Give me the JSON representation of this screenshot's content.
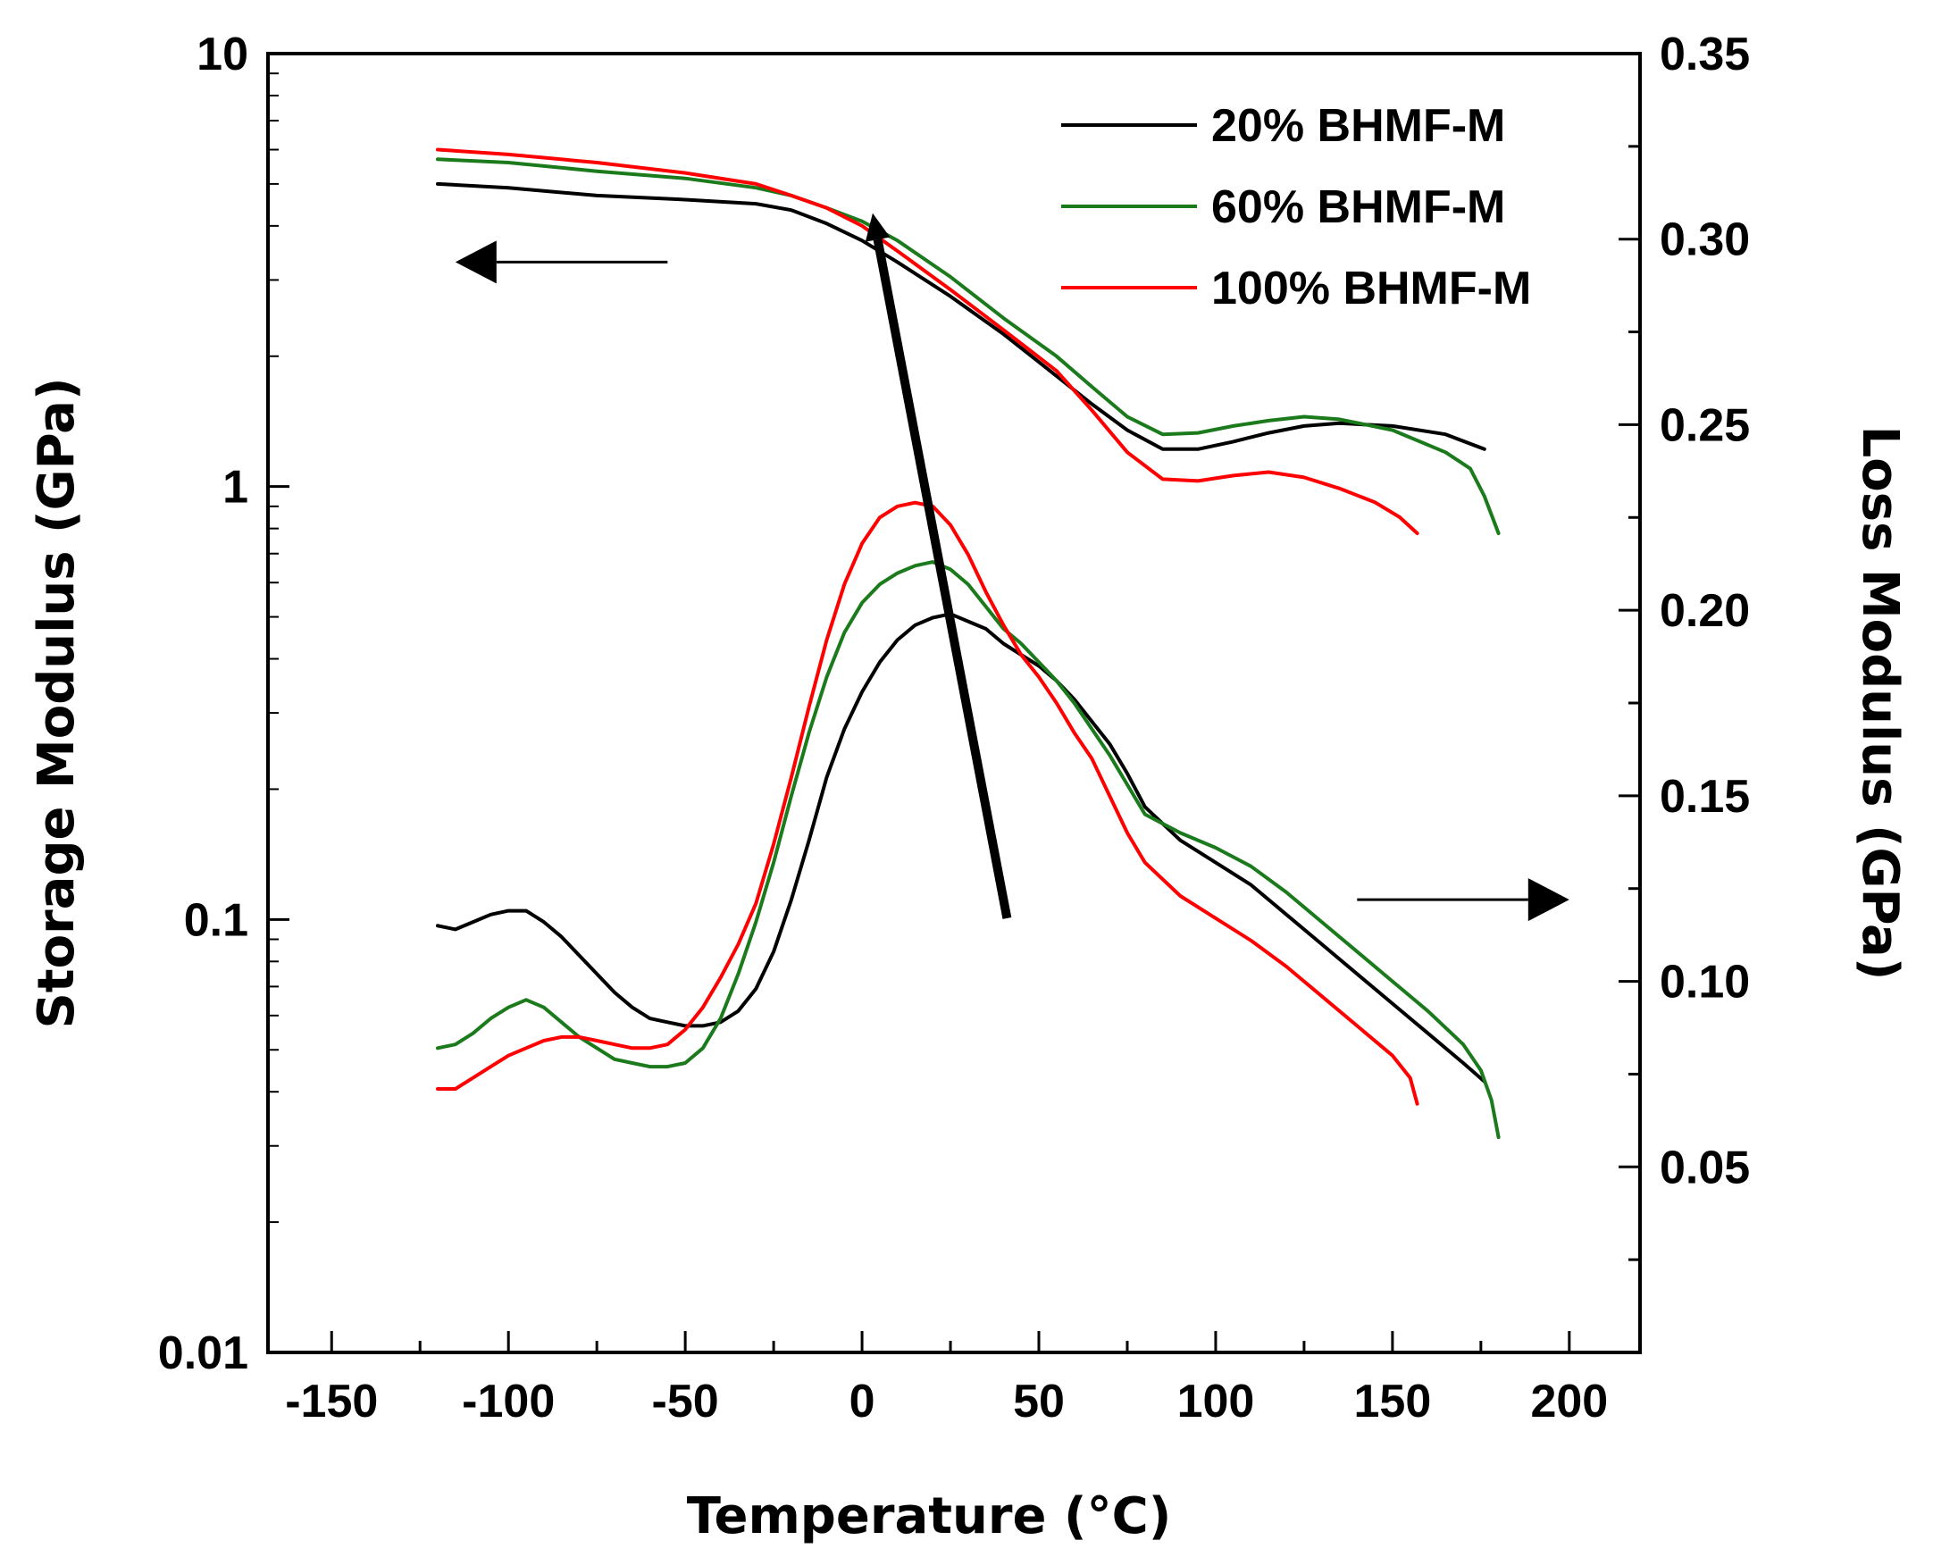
{
  "chart_data": {
    "type": "line",
    "title": "",
    "xlabel": "Temperature (°C)",
    "ylabel_left": "Storage Modulus (GPa)",
    "ylabel_right": "Loss  Modulus (GPa)",
    "xlim": [
      -168,
      220
    ],
    "xticks": [
      -150,
      -100,
      -50,
      0,
      50,
      100,
      150,
      200
    ],
    "xtick_labels": [
      "-150",
      "-100",
      "-50",
      "0",
      "50",
      "100",
      "150",
      "200"
    ],
    "ylim_left": [
      0.01,
      10
    ],
    "yscale_left": "log",
    "yticks_left": [
      10,
      1,
      0.1,
      0.01
    ],
    "ytick_labels_left": [
      "10",
      "1",
      "0.1",
      "0.01"
    ],
    "ylim_right": [
      0.0,
      0.35
    ],
    "yticks_right": [
      0.35,
      0.3,
      0.25,
      0.2,
      0.15,
      0.1,
      0.05
    ],
    "ytick_labels_right": [
      "0.35",
      "0.30",
      "0.25",
      "0.20",
      "0.15",
      "0.10",
      "0.05"
    ],
    "legend_position": "top-right",
    "legend": [
      "20% BHMF-M",
      "60% BHMF-M",
      "100% BHMF-M"
    ],
    "series": [
      {
        "name": "20% BHMF-M",
        "color": "#000000",
        "axis": "left",
        "kind": "storage",
        "x": [
          -120,
          -100,
          -75,
          -50,
          -30,
          -20,
          -10,
          0,
          10,
          25,
          40,
          55,
          65,
          75,
          85,
          95,
          105,
          115,
          125,
          135,
          150,
          165,
          176
        ],
        "y": [
          5.0,
          4.9,
          4.7,
          4.6,
          4.5,
          4.35,
          4.05,
          3.7,
          3.3,
          2.75,
          2.25,
          1.8,
          1.55,
          1.35,
          1.22,
          1.22,
          1.27,
          1.33,
          1.38,
          1.4,
          1.38,
          1.32,
          1.22
        ]
      },
      {
        "name": "60% BHMF-M",
        "color": "#1b7a1b",
        "axis": "left",
        "kind": "storage",
        "x": [
          -120,
          -100,
          -75,
          -50,
          -30,
          -20,
          -10,
          0,
          10,
          25,
          40,
          55,
          65,
          75,
          85,
          95,
          105,
          115,
          125,
          135,
          150,
          165,
          172,
          176,
          180
        ],
        "y": [
          5.7,
          5.6,
          5.35,
          5.15,
          4.9,
          4.7,
          4.4,
          4.1,
          3.7,
          3.05,
          2.45,
          2.0,
          1.7,
          1.45,
          1.32,
          1.33,
          1.38,
          1.42,
          1.45,
          1.43,
          1.35,
          1.2,
          1.1,
          0.95,
          0.78
        ]
      },
      {
        "name": "100% BHMF-M",
        "color": "#ff0000",
        "axis": "left",
        "kind": "storage",
        "x": [
          -120,
          -100,
          -75,
          -50,
          -30,
          -20,
          -10,
          0,
          10,
          25,
          40,
          55,
          65,
          75,
          85,
          95,
          105,
          115,
          125,
          135,
          145,
          152,
          157
        ],
        "y": [
          6.0,
          5.85,
          5.6,
          5.3,
          5.0,
          4.7,
          4.4,
          4.0,
          3.5,
          2.85,
          2.3,
          1.85,
          1.5,
          1.2,
          1.04,
          1.03,
          1.06,
          1.08,
          1.05,
          0.99,
          0.92,
          0.85,
          0.78
        ]
      },
      {
        "name": "20% BHMF-M",
        "color": "#000000",
        "axis": "right",
        "kind": "loss",
        "x": [
          -120,
          -115,
          -110,
          -105,
          -100,
          -95,
          -90,
          -85,
          -80,
          -75,
          -70,
          -65,
          -60,
          -55,
          -50,
          -45,
          -40,
          -35,
          -30,
          -25,
          -20,
          -15,
          -10,
          -5,
          0,
          5,
          10,
          15,
          20,
          25,
          30,
          35,
          40,
          45,
          50,
          55,
          60,
          65,
          70,
          75,
          80,
          90,
          100,
          110,
          120,
          130,
          140,
          150,
          160,
          170,
          176
        ],
        "y": [
          0.115,
          0.114,
          0.116,
          0.118,
          0.119,
          0.119,
          0.116,
          0.112,
          0.107,
          0.102,
          0.097,
          0.093,
          0.09,
          0.089,
          0.088,
          0.088,
          0.089,
          0.092,
          0.098,
          0.108,
          0.122,
          0.138,
          0.155,
          0.168,
          0.178,
          0.186,
          0.192,
          0.196,
          0.198,
          0.199,
          0.197,
          0.195,
          0.191,
          0.188,
          0.185,
          0.181,
          0.176,
          0.17,
          0.164,
          0.156,
          0.147,
          0.138,
          0.132,
          0.126,
          0.118,
          0.11,
          0.102,
          0.094,
          0.086,
          0.078,
          0.073
        ]
      },
      {
        "name": "60% BHMF-M",
        "color": "#1b7a1b",
        "axis": "right",
        "kind": "loss",
        "x": [
          -120,
          -115,
          -110,
          -105,
          -100,
          -95,
          -90,
          -85,
          -80,
          -75,
          -70,
          -65,
          -60,
          -55,
          -50,
          -45,
          -40,
          -35,
          -30,
          -25,
          -20,
          -15,
          -10,
          -5,
          0,
          5,
          10,
          15,
          20,
          25,
          30,
          35,
          40,
          45,
          50,
          55,
          60,
          65,
          70,
          75,
          80,
          90,
          100,
          110,
          120,
          130,
          140,
          150,
          160,
          170,
          175,
          178,
          180
        ],
        "y": [
          0.082,
          0.083,
          0.086,
          0.09,
          0.093,
          0.095,
          0.093,
          0.089,
          0.085,
          0.082,
          0.079,
          0.078,
          0.077,
          0.077,
          0.078,
          0.082,
          0.09,
          0.102,
          0.116,
          0.132,
          0.15,
          0.167,
          0.182,
          0.194,
          0.202,
          0.207,
          0.21,
          0.212,
          0.213,
          0.211,
          0.207,
          0.201,
          0.195,
          0.191,
          0.186,
          0.181,
          0.175,
          0.168,
          0.161,
          0.153,
          0.145,
          0.14,
          0.136,
          0.131,
          0.124,
          0.116,
          0.108,
          0.1,
          0.092,
          0.083,
          0.076,
          0.068,
          0.058
        ]
      },
      {
        "name": "100% BHMF-M",
        "color": "#ff0000",
        "axis": "right",
        "kind": "loss",
        "x": [
          -120,
          -115,
          -110,
          -105,
          -100,
          -95,
          -90,
          -85,
          -80,
          -75,
          -70,
          -65,
          -60,
          -55,
          -50,
          -45,
          -40,
          -35,
          -30,
          -25,
          -20,
          -15,
          -10,
          -5,
          0,
          5,
          10,
          15,
          20,
          25,
          30,
          35,
          40,
          45,
          50,
          55,
          60,
          65,
          70,
          75,
          80,
          90,
          100,
          110,
          120,
          130,
          140,
          150,
          155,
          157
        ],
        "y": [
          0.071,
          0.071,
          0.074,
          0.077,
          0.08,
          0.082,
          0.084,
          0.085,
          0.085,
          0.084,
          0.083,
          0.082,
          0.082,
          0.083,
          0.087,
          0.093,
          0.101,
          0.11,
          0.121,
          0.137,
          0.155,
          0.174,
          0.192,
          0.207,
          0.218,
          0.225,
          0.228,
          0.229,
          0.228,
          0.223,
          0.215,
          0.205,
          0.196,
          0.188,
          0.182,
          0.175,
          0.167,
          0.16,
          0.15,
          0.14,
          0.132,
          0.123,
          0.117,
          0.111,
          0.104,
          0.096,
          0.088,
          0.08,
          0.074,
          0.067
        ]
      }
    ],
    "annotations": [
      {
        "type": "arrow",
        "meaning": "storage modulus curves refer to left axis",
        "from": [
          -55,
          3.3
        ],
        "to": [
          -115,
          3.3
        ],
        "axis": "left"
      },
      {
        "type": "arrow",
        "meaning": "loss modulus curves refer to right axis",
        "from": [
          140,
          0.122
        ],
        "to": [
          200,
          0.122
        ],
        "axis": "right"
      },
      {
        "type": "arrow",
        "meaning": "trend with increasing BHMF-M content",
        "from": [
          41,
          0.117
        ],
        "to": [
          3,
          0.307
        ],
        "axis": "right"
      }
    ]
  }
}
